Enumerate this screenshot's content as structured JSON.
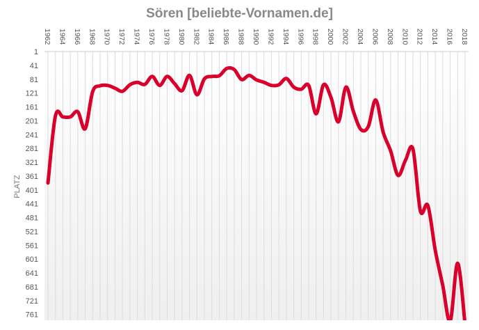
{
  "chart_data": {
    "type": "line",
    "title": "Sören [beliebte-Vornamen.de]",
    "xlabel": "",
    "ylabel": "PLATZ",
    "x_axis_position": "top",
    "y_reversed": true,
    "ylim": [
      1,
      775
    ],
    "xlim": [
      1962,
      2018
    ],
    "y_ticks": [
      1,
      41,
      81,
      121,
      161,
      201,
      241,
      281,
      321,
      361,
      401,
      441,
      481,
      521,
      561,
      601,
      641,
      681,
      721,
      761
    ],
    "x_ticks": [
      1962,
      1964,
      1966,
      1968,
      1970,
      1972,
      1974,
      1976,
      1978,
      1980,
      1982,
      1984,
      1986,
      1988,
      1990,
      1992,
      1994,
      1996,
      1998,
      2000,
      2002,
      2004,
      2006,
      2008,
      2010,
      2012,
      2014,
      2016,
      2018
    ],
    "grid": {
      "vertical": true,
      "horizontal": false
    },
    "line_color": "#d9002b",
    "x": [
      1962,
      1963,
      1964,
      1965,
      1966,
      1967,
      1968,
      1969,
      1970,
      1971,
      1972,
      1973,
      1974,
      1975,
      1976,
      1977,
      1978,
      1979,
      1980,
      1981,
      1982,
      1983,
      1984,
      1985,
      1986,
      1987,
      1988,
      1989,
      1990,
      1991,
      1992,
      1993,
      1994,
      1995,
      1996,
      1997,
      1998,
      1999,
      2000,
      2001,
      2002,
      2003,
      2004,
      2005,
      2006,
      2007,
      2008,
      2009,
      2010,
      2011,
      2012,
      2013,
      2014,
      2015,
      2016,
      2017,
      2018
    ],
    "values": [
      381,
      187,
      190,
      190,
      175,
      224,
      117,
      100,
      99,
      107,
      116,
      97,
      90,
      96,
      73,
      99,
      73,
      94,
      114,
      70,
      126,
      80,
      73,
      71,
      50,
      53,
      82,
      70,
      83,
      90,
      99,
      97,
      79,
      104,
      110,
      99,
      181,
      97,
      134,
      204,
      104,
      174,
      226,
      218,
      141,
      234,
      288,
      359,
      315,
      283,
      462,
      446,
      576,
      677,
      780,
      613,
      790
    ]
  }
}
